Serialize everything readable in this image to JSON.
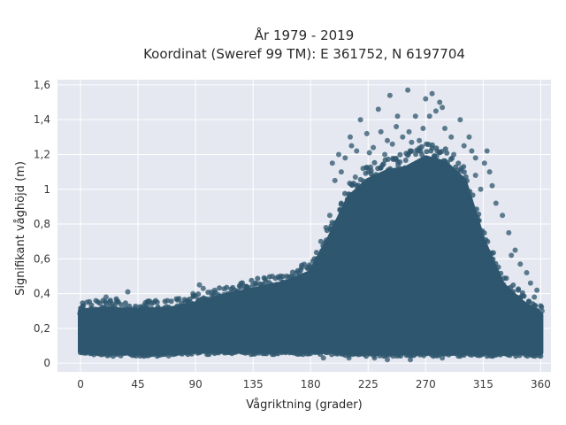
{
  "chart_data": {
    "type": "scatter",
    "title": "År 1979 - 2019",
    "subtitle": "Koordinat (Sweref 99 TM): E 361752, N 6197704",
    "xlabel": "Vågriktning (grader)",
    "ylabel": "Signifikant våghöjd (m)",
    "xlim": [
      -18,
      368
    ],
    "ylim": [
      -0.05,
      1.63
    ],
    "x_ticks": [
      0,
      45,
      90,
      135,
      180,
      225,
      270,
      315,
      360
    ],
    "x_tick_labels": [
      "0",
      "45",
      "90",
      "135",
      "180",
      "225",
      "270",
      "315",
      "360"
    ],
    "y_ticks": [
      0,
      0.2,
      0.4,
      0.6,
      0.8,
      1.0,
      1.2,
      1.4,
      1.6
    ],
    "y_tick_labels": [
      "0",
      "0,2",
      "0,4",
      "0,6",
      "0,8",
      "1",
      "1,2",
      "1,4",
      "1,6"
    ],
    "grid": true,
    "marker_color": "#2e566e",
    "plot_background": "#e5e8f0",
    "envelope": {
      "x": [
        0,
        20,
        45,
        70,
        90,
        110,
        135,
        160,
        180,
        195,
        210,
        225,
        240,
        255,
        270,
        285,
        300,
        315,
        330,
        345,
        360
      ],
      "upper": [
        0.3,
        0.31,
        0.3,
        0.31,
        0.34,
        0.38,
        0.42,
        0.46,
        0.52,
        0.72,
        0.95,
        1.05,
        1.1,
        1.12,
        1.18,
        1.15,
        1.05,
        0.7,
        0.45,
        0.35,
        0.28
      ],
      "lower": [
        0.07,
        0.06,
        0.06,
        0.06,
        0.07,
        0.07,
        0.07,
        0.07,
        0.07,
        0.07,
        0.06,
        0.06,
        0.06,
        0.06,
        0.06,
        0.06,
        0.06,
        0.06,
        0.06,
        0.06,
        0.06
      ]
    },
    "outliers": [
      {
        "x": 256,
        "y": 1.57
      },
      {
        "x": 242,
        "y": 1.54
      },
      {
        "x": 275,
        "y": 1.55
      },
      {
        "x": 270,
        "y": 1.52
      },
      {
        "x": 281,
        "y": 1.5
      },
      {
        "x": 278,
        "y": 1.45
      },
      {
        "x": 248,
        "y": 1.42
      },
      {
        "x": 233,
        "y": 1.46
      },
      {
        "x": 262,
        "y": 1.42
      },
      {
        "x": 283,
        "y": 1.47
      },
      {
        "x": 297,
        "y": 1.4
      },
      {
        "x": 235,
        "y": 1.33
      },
      {
        "x": 247,
        "y": 1.36
      },
      {
        "x": 257,
        "y": 1.33
      },
      {
        "x": 268,
        "y": 1.35
      },
      {
        "x": 273,
        "y": 1.42
      },
      {
        "x": 219,
        "y": 1.4
      },
      {
        "x": 211,
        "y": 1.3
      },
      {
        "x": 224,
        "y": 1.32
      },
      {
        "x": 240,
        "y": 1.28
      },
      {
        "x": 252,
        "y": 1.3
      },
      {
        "x": 265,
        "y": 1.28
      },
      {
        "x": 285,
        "y": 1.35
      },
      {
        "x": 290,
        "y": 1.3
      },
      {
        "x": 304,
        "y": 1.3
      },
      {
        "x": 212,
        "y": 1.25
      },
      {
        "x": 229,
        "y": 1.24
      },
      {
        "x": 244,
        "y": 1.26
      },
      {
        "x": 259,
        "y": 1.27
      },
      {
        "x": 279,
        "y": 1.22
      },
      {
        "x": 300,
        "y": 1.25
      },
      {
        "x": 306,
        "y": 1.22
      },
      {
        "x": 318,
        "y": 1.22
      },
      {
        "x": 202,
        "y": 1.2
      },
      {
        "x": 207,
        "y": 1.18
      },
      {
        "x": 216,
        "y": 1.22
      },
      {
        "x": 226,
        "y": 1.21
      },
      {
        "x": 238,
        "y": 1.2
      },
      {
        "x": 292,
        "y": 1.2
      },
      {
        "x": 309,
        "y": 1.18
      },
      {
        "x": 316,
        "y": 1.15
      },
      {
        "x": 197,
        "y": 1.15
      },
      {
        "x": 204,
        "y": 1.1
      },
      {
        "x": 221,
        "y": 1.12
      },
      {
        "x": 309,
        "y": 1.08
      },
      {
        "x": 320,
        "y": 1.1
      },
      {
        "x": 199,
        "y": 1.05
      },
      {
        "x": 215,
        "y": 1.07
      },
      {
        "x": 313,
        "y": 1.0
      },
      {
        "x": 322,
        "y": 1.02
      },
      {
        "x": 325,
        "y": 0.92
      },
      {
        "x": 330,
        "y": 0.85
      },
      {
        "x": 335,
        "y": 0.75
      },
      {
        "x": 340,
        "y": 0.65
      },
      {
        "x": 344,
        "y": 0.57
      },
      {
        "x": 337,
        "y": 0.62
      },
      {
        "x": 349,
        "y": 0.52
      },
      {
        "x": 352,
        "y": 0.46
      },
      {
        "x": 357,
        "y": 0.42
      },
      {
        "x": 355,
        "y": 0.38
      },
      {
        "x": 360,
        "y": 0.33
      },
      {
        "x": 361,
        "y": 0.3
      },
      {
        "x": 158,
        "y": 0.46
      },
      {
        "x": 150,
        "y": 0.5
      },
      {
        "x": 145,
        "y": 0.47
      },
      {
        "x": 137,
        "y": 0.46
      },
      {
        "x": 130,
        "y": 0.44
      },
      {
        "x": 121,
        "y": 0.42
      },
      {
        "x": 115,
        "y": 0.4
      },
      {
        "x": 105,
        "y": 0.42
      },
      {
        "x": 93,
        "y": 0.45
      },
      {
        "x": 96,
        "y": 0.43
      },
      {
        "x": 88,
        "y": 0.4
      },
      {
        "x": 75,
        "y": 0.37
      },
      {
        "x": 68,
        "y": 0.36
      },
      {
        "x": 60,
        "y": 0.35
      },
      {
        "x": 52,
        "y": 0.34
      },
      {
        "x": 37,
        "y": 0.41
      },
      {
        "x": 28,
        "y": 0.37
      },
      {
        "x": 20,
        "y": 0.38
      },
      {
        "x": 12,
        "y": 0.36
      },
      {
        "x": 5,
        "y": 0.35
      },
      {
        "x": 2,
        "y": 0.33
      },
      {
        "x": 165,
        "y": 0.5
      },
      {
        "x": 172,
        "y": 0.48
      },
      {
        "x": 177,
        "y": 0.55
      },
      {
        "x": 183,
        "y": 0.6
      },
      {
        "x": 188,
        "y": 0.7
      },
      {
        "x": 192,
        "y": 0.78
      },
      {
        "x": 195,
        "y": 0.85
      },
      {
        "x": 190,
        "y": 0.03
      },
      {
        "x": 240,
        "y": 0.02
      },
      {
        "x": 258,
        "y": 0.02
      },
      {
        "x": 283,
        "y": 0.03
      },
      {
        "x": 318,
        "y": 0.04
      },
      {
        "x": 355,
        "y": 0.05
      },
      {
        "x": 230,
        "y": 0.03
      },
      {
        "x": 210,
        "y": 0.03
      }
    ]
  }
}
